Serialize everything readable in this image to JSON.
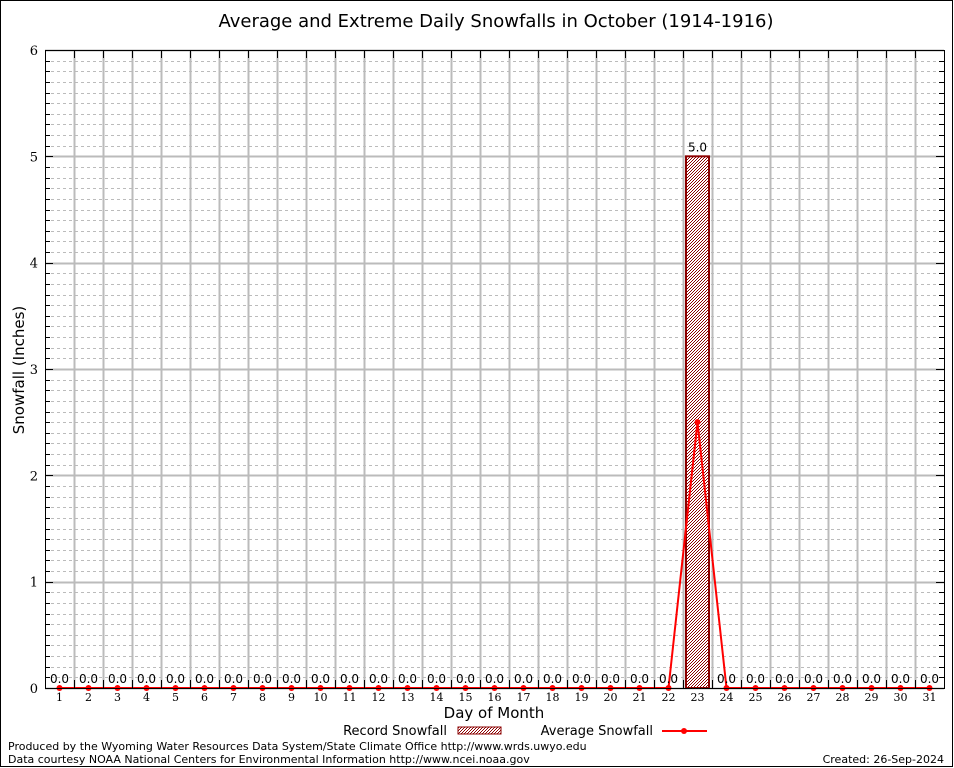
{
  "chart_data": {
    "type": "bar",
    "title": "Average and Extreme Daily Snowfalls in October (1914-1916)",
    "xlabel": "Day of Month",
    "ylabel": "Snowfall (Inches)",
    "ylim": [
      0,
      6
    ],
    "yticks": [
      "0",
      "1",
      "2",
      "3",
      "4",
      "5",
      "6"
    ],
    "categories": [
      "1",
      "2",
      "3",
      "4",
      "5",
      "6",
      "7",
      "8",
      "9",
      "10",
      "11",
      "12",
      "13",
      "14",
      "15",
      "16",
      "17",
      "18",
      "19",
      "20",
      "21",
      "22",
      "23",
      "24",
      "25",
      "26",
      "27",
      "28",
      "29",
      "30",
      "31"
    ],
    "series": [
      {
        "name": "Record Snowfall",
        "type": "bar",
        "color": "#8b0000",
        "values": [
          0,
          0,
          0,
          0,
          0,
          0,
          0,
          0,
          0,
          0,
          0,
          0,
          0,
          0,
          0,
          0,
          0,
          0,
          0,
          0,
          0,
          0,
          5.0,
          0,
          0,
          0,
          0,
          0,
          0,
          0,
          0
        ]
      },
      {
        "name": "Average Snowfall",
        "type": "line",
        "color": "#ff0000",
        "values": [
          0,
          0,
          0,
          0,
          0,
          0,
          0,
          0,
          0,
          0,
          0,
          0,
          0,
          0,
          0,
          0,
          0,
          0,
          0,
          0,
          0,
          0,
          2.5,
          0,
          0,
          0,
          0,
          0,
          0,
          0,
          0
        ]
      }
    ],
    "data_labels": [
      "0.0",
      "0.0",
      "0.0",
      "0.0",
      "0.0",
      "0.0",
      "0.0",
      "0.0",
      "0.0",
      "0.0",
      "0.0",
      "0.0",
      "0.0",
      "0.0",
      "0.0",
      "0.0",
      "0.0",
      "0.0",
      "0.0",
      "0.0",
      "0.0",
      "0.0",
      "5.0",
      "0.0",
      "0.0",
      "0.0",
      "0.0",
      "0.0",
      "0.0",
      "0.0",
      "0.0"
    ],
    "grid": true,
    "legend_placement": "bottom"
  },
  "footer": {
    "credit1": "Produced by the Wyoming Water Resources Data System/State Climate Office http://www.wrds.uwyo.edu",
    "credit2": "Data courtesy NOAA National Centers for Environmental Information http://www.ncei.noaa.gov",
    "created": "Created:  26-Sep-2024"
  }
}
